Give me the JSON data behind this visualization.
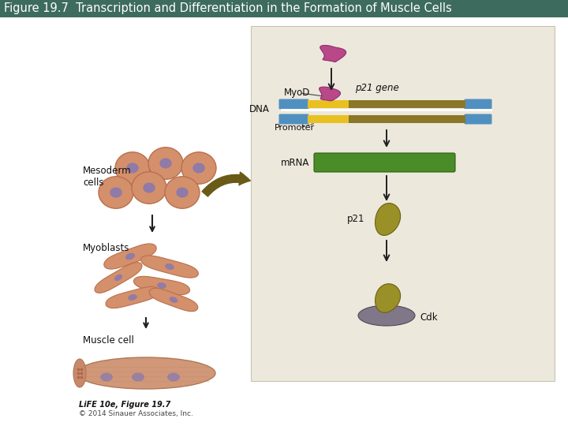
{
  "title": "Figure 19.7  Transcription and Differentiation in the Formation of Muscle Cells",
  "title_bg": "#3d6b5e",
  "title_fg": "white",
  "title_fontsize": 10.5,
  "bg_color": "#ffffff",
  "panel_bg": "#ede8dc",
  "panel_border": "#c8c4b0",
  "labels": {
    "mesoderm_cells": "Mesoderm\ncells",
    "myoblasts": "Myoblasts",
    "muscle_cell": "Muscle cell",
    "myod": "MyoD",
    "dna": "DNA",
    "promoter": "Promoter",
    "mrna": "mRNA",
    "p21_gene": "p21 gene",
    "p21": "p21",
    "cdk": "Cdk",
    "life_credit": "LiFE 10e, Figure 19.7",
    "copyright": "© 2014 Sinauer Associates, Inc."
  },
  "colors": {
    "cell_fill": "#d4906a",
    "cell_outline": "#b87050",
    "cell_nucleus": "#8878b0",
    "myoblast_fill": "#d4906a",
    "myoblast_outline": "#b87050",
    "muscle_fill": "#d09878",
    "muscle_outline": "#b07855",
    "muscle_end_fill": "#c08868",
    "dna_blue": "#5090c0",
    "dna_promoter": "#e8c020",
    "dna_gene": "#8a7828",
    "mrna_fill": "#4a8c28",
    "mrna_outline": "#2a6010",
    "myod_protein": "#b84888",
    "p21_protein": "#9a9028",
    "cdk_protein": "#807888",
    "arrow_color": "#202020",
    "curved_arrow_fill": "#6a5a18",
    "panel_bg": "#ede8dc"
  }
}
